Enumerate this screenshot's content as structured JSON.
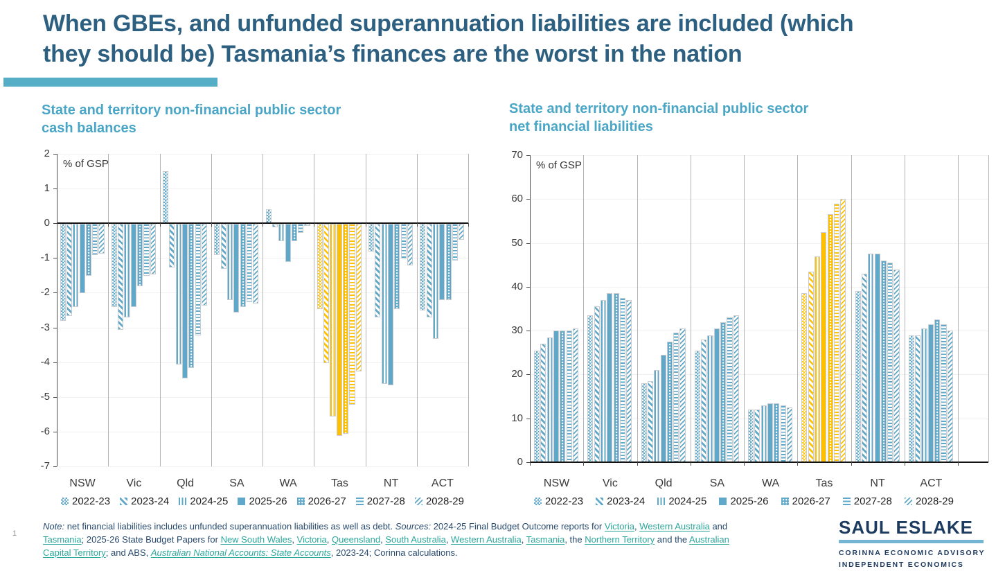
{
  "slide": {
    "title": {
      "line1": "When GBEs, and unfunded superannuation liabilities are included (which",
      "line2": "they should be) Tasmania’s finances are the worst in the nation"
    },
    "page_number": "1",
    "accent_color": "#56AEC6"
  },
  "chart_data": [
    {
      "type": "bar",
      "title": "State and territory non-financial public sector cash balances",
      "title_lines": [
        "State and territory non-financial public sector",
        "cash balances"
      ],
      "unit_label": "% of GSP",
      "categories": [
        "NSW",
        "Vic",
        "Qld",
        "SA",
        "WA",
        "Tas",
        "NT",
        "ACT"
      ],
      "series": [
        {
          "name": "2022-23",
          "pattern": "checker",
          "values": [
            -2.8,
            -2.4,
            1.5,
            -0.9,
            0.4,
            -2.45,
            -0.8,
            -2.5
          ]
        },
        {
          "name": "2023-24",
          "pattern": "diagonal-down",
          "values": [
            -2.65,
            -3.05,
            -1.25,
            -1.3,
            -0.1,
            -4.0,
            -2.7,
            -2.7
          ]
        },
        {
          "name": "2024-25",
          "pattern": "vertical-lines",
          "values": [
            -2.4,
            -2.7,
            -4.05,
            -2.2,
            -0.5,
            -5.55,
            -4.6,
            -3.3
          ]
        },
        {
          "name": "2025-26",
          "pattern": "solid",
          "values": [
            -2.0,
            -2.4,
            -4.45,
            -2.55,
            -1.1,
            -6.1,
            -4.65,
            -2.2
          ]
        },
        {
          "name": "2026-27",
          "pattern": "dots",
          "values": [
            -1.5,
            -1.8,
            -4.15,
            -2.4,
            -0.5,
            -6.05,
            -2.45,
            -2.2
          ]
        },
        {
          "name": "2027-28",
          "pattern": "horizontal-lines",
          "values": [
            -0.9,
            -1.5,
            -3.2,
            -2.25,
            -0.25,
            -5.2,
            -1.0,
            -1.05
          ]
        },
        {
          "name": "2028-29",
          "pattern": "diagonal-up",
          "values": [
            -0.85,
            -1.45,
            -2.35,
            -2.3,
            -0.05,
            -4.25,
            -1.2,
            -0.45
          ]
        }
      ],
      "ylim": [
        -7,
        2
      ],
      "ytick_step": 1,
      "yticks": [
        "2",
        "1",
        "0",
        "-1",
        "-2",
        "-3",
        "-4",
        "-5",
        "-6",
        "-7"
      ],
      "highlight_category": "Tas",
      "bar_color": "#5FA8C9",
      "highlight_color": "#FFC000",
      "grid": "vertical category separators, faint horizontal lines",
      "legend_position": "bottom"
    },
    {
      "type": "bar",
      "title": "State and territory non-financial public sector net financial liabilities",
      "title_lines": [
        "State and territory non-financial public sector",
        "net financial liabilities"
      ],
      "unit_label": "% of GSP",
      "categories": [
        "NSW",
        "Vic",
        "Qld",
        "SA",
        "WA",
        "Tas",
        "NT",
        "ACT"
      ],
      "series": [
        {
          "name": "2022-23",
          "pattern": "checker",
          "values": [
            25.5,
            33.5,
            18,
            25.5,
            12,
            38.5,
            39,
            29
          ]
        },
        {
          "name": "2023-24",
          "pattern": "diagonal-down",
          "values": [
            27,
            35.5,
            18.5,
            28,
            12,
            43.5,
            43,
            29
          ]
        },
        {
          "name": "2024-25",
          "pattern": "vertical-lines",
          "values": [
            28.5,
            37,
            21,
            29,
            13,
            47,
            47.5,
            30.5
          ]
        },
        {
          "name": "2025-26",
          "pattern": "solid",
          "values": [
            30,
            38.5,
            24.5,
            30.5,
            13.5,
            52.5,
            47.5,
            31.5
          ]
        },
        {
          "name": "2026-27",
          "pattern": "dots",
          "values": [
            30,
            38.5,
            27.5,
            32,
            13.5,
            56.5,
            46,
            32.5
          ]
        },
        {
          "name": "2027-28",
          "pattern": "horizontal-lines",
          "values": [
            30,
            37.5,
            29.5,
            33,
            13,
            59,
            45.5,
            31.5
          ]
        },
        {
          "name": "2028-29",
          "pattern": "diagonal-up",
          "values": [
            30.5,
            37,
            30.5,
            33.5,
            12.5,
            60,
            44,
            30
          ]
        }
      ],
      "ylim": [
        0,
        70
      ],
      "ytick_step": 10,
      "yticks": [
        "70",
        "60",
        "50",
        "40",
        "30",
        "20",
        "10",
        "0"
      ],
      "highlight_category": "Tas",
      "bar_color": "#5FA8C9",
      "highlight_color": "#FFC000",
      "grid": "vertical category separators, faint horizontal lines",
      "legend_position": "bottom"
    }
  ],
  "footnote": {
    "lines": [
      [
        {
          "text": "Note:",
          "style": "italic"
        },
        {
          "text": " net financial liabilities includes unfunded superannuation liabilities as well as debt. "
        },
        {
          "text": "Sources:",
          "style": "italic"
        },
        {
          "text": " 2024-25 Final Budget Outcome reports for "
        },
        {
          "text": "Victoria",
          "style": "link"
        },
        {
          "text": ", "
        },
        {
          "text": "Western Australia",
          "style": "link"
        },
        {
          "text": " and "
        }
      ],
      [
        {
          "text": "Tasmania",
          "style": "link"
        },
        {
          "text": "; 2025-26 State Budget Papers for "
        },
        {
          "text": "New South Wales",
          "style": "link"
        },
        {
          "text": ", "
        },
        {
          "text": "Victoria",
          "style": "link"
        },
        {
          "text": ", "
        },
        {
          "text": "Queensland",
          "style": "link"
        },
        {
          "text": ", "
        },
        {
          "text": "South Australia",
          "style": "link"
        },
        {
          "text": ", "
        },
        {
          "text": "Western Australia",
          "style": "link"
        },
        {
          "text": ", "
        },
        {
          "text": "Tasmania",
          "style": "link"
        },
        {
          "text": ", the "
        },
        {
          "text": "Northern Territory",
          "style": "link"
        },
        {
          "text": " and the "
        },
        {
          "text": "Australian",
          "style": "link"
        }
      ],
      [
        {
          "text": "Capital Territory",
          "style": "link"
        },
        {
          "text": "; and ABS, "
        },
        {
          "text": "Australian National Accounts: State Accounts",
          "style": "link-italic"
        },
        {
          "text": ", 2023-24; Corinna calculations."
        }
      ]
    ]
  },
  "logo": {
    "name": "SAUL ESLAKE",
    "line1": "CORINNA ECONOMIC ADVISORY",
    "line2": "INDEPENDENT ECONOMICS"
  }
}
